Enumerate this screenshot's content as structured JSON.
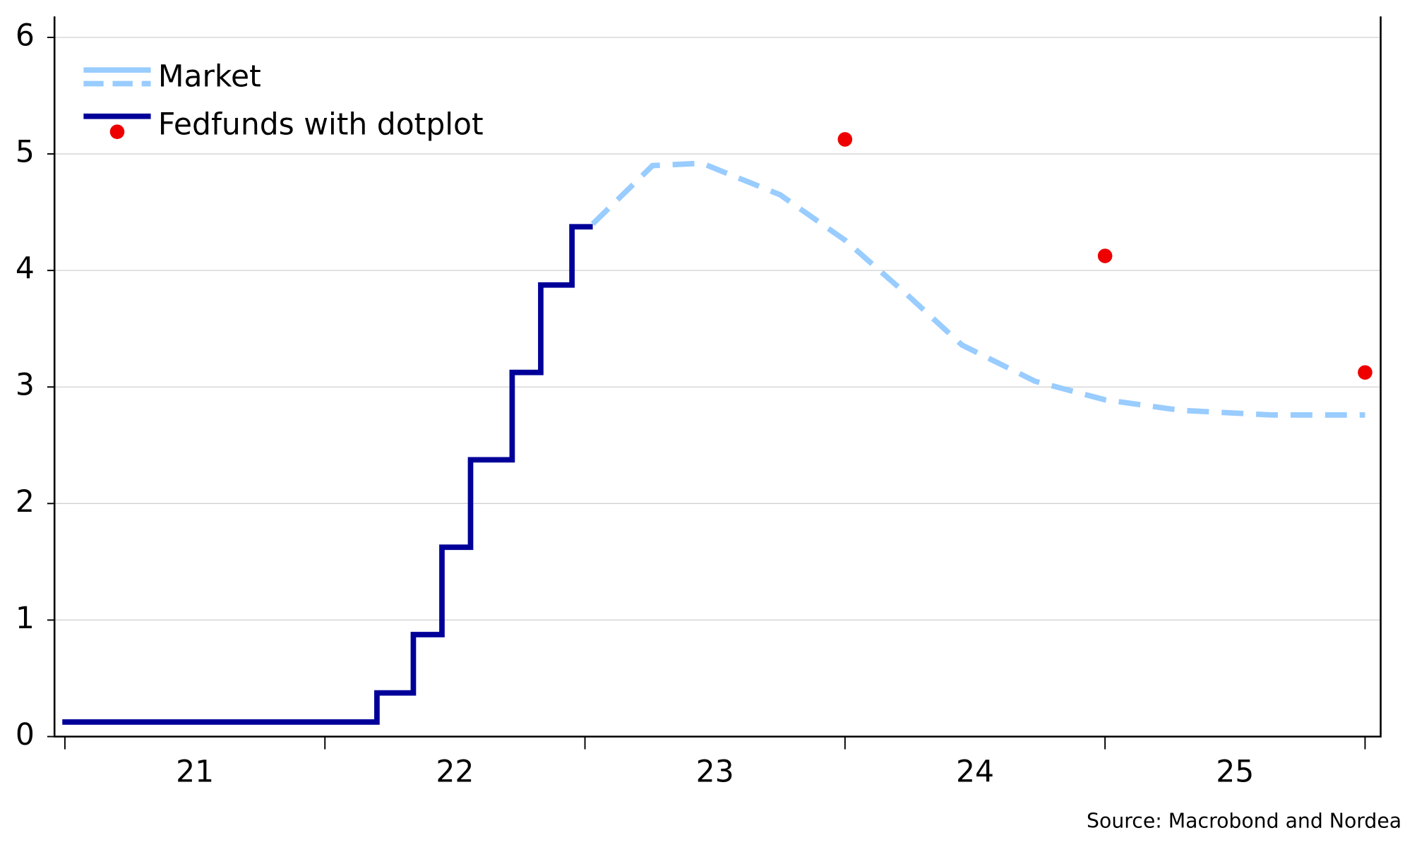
{
  "chart_data": {
    "type": "line",
    "source": "Source: Macrobond and Nordea",
    "xlim": [
      2020.96,
      2026.06
    ],
    "ylim": [
      0,
      6.18
    ],
    "yticks": [
      0,
      1,
      2,
      3,
      4,
      5,
      6
    ],
    "xticks": [
      2021,
      2022,
      2023,
      2024,
      2025,
      2026
    ],
    "xlabels": [
      {
        "value": 2021.5,
        "label": "21"
      },
      {
        "value": 2022.5,
        "label": "22"
      },
      {
        "value": 2023.5,
        "label": "23"
      },
      {
        "value": 2024.5,
        "label": "24"
      },
      {
        "value": 2025.5,
        "label": "25"
      }
    ],
    "grid": true,
    "legend": "upper left",
    "series": [
      {
        "name": "Market",
        "color": "#99ccff",
        "dashed": true,
        "x": [
          2023.03,
          2023.26,
          2023.45,
          2023.75,
          2024.0,
          2024.24,
          2024.45,
          2024.73,
          2025.0,
          2025.29,
          2025.64,
          2026.0
        ],
        "values": [
          4.4,
          4.9,
          4.92,
          4.65,
          4.26,
          3.79,
          3.36,
          3.05,
          2.89,
          2.8,
          2.76,
          2.76
        ]
      },
      {
        "name": "Fedfunds with dotplot",
        "color": "#000099",
        "dashed": false,
        "x": [
          2020.99,
          2022.2,
          2022.2,
          2022.34,
          2022.34,
          2022.45,
          2022.45,
          2022.56,
          2022.56,
          2022.72,
          2022.72,
          2022.83,
          2022.83,
          2022.95,
          2022.95,
          2023.03
        ],
        "values": [
          0.125,
          0.125,
          0.375,
          0.375,
          0.875,
          0.875,
          1.625,
          1.625,
          2.375,
          2.375,
          3.125,
          3.125,
          3.875,
          3.875,
          4.375,
          4.375
        ],
        "dotplot": {
          "color": "#ee0000",
          "x": [
            2024.0,
            2025.0,
            2026.0
          ],
          "values": [
            5.125,
            4.125,
            3.125
          ]
        }
      }
    ]
  }
}
